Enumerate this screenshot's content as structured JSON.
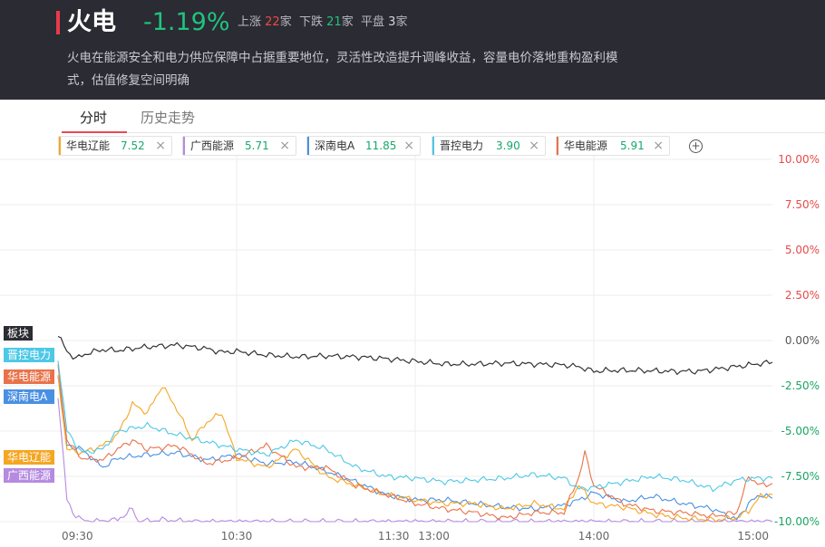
{
  "header": {
    "title": "火电",
    "change": "-1.19%",
    "up_label": "上涨",
    "up_count": "22",
    "up_unit": "家",
    "down_label": "下跌",
    "down_count": "21",
    "down_unit": "家",
    "flat_label": "平盘",
    "flat_count": "3",
    "flat_unit": "家",
    "description": "火电在能源安全和电力供应保障中占据重要地位，灵活性改造提升调峰收益，容量电价落地重构盈利模式，估值修复空间明确",
    "accent_color": "#e83a4a"
  },
  "tabs": [
    {
      "label": "分时",
      "active": true
    },
    {
      "label": "历史走势",
      "active": false
    }
  ],
  "chips": [
    {
      "name": "华电辽能",
      "value": "7.52",
      "color": "#f5a623",
      "close": "×"
    },
    {
      "name": "广西能源",
      "value": "5.71",
      "color": "#b58ae0",
      "close": "×"
    },
    {
      "name": "深南电A",
      "value": "11.85",
      "color": "#4a90e2",
      "close": "×"
    },
    {
      "name": "晋控电力",
      "value": "3.90",
      "color": "#4dc8e6",
      "close": "×"
    },
    {
      "name": "华电能源",
      "value": "5.91",
      "color": "#e8734a",
      "close": "×"
    }
  ],
  "add_icon": "plus-circle-icon",
  "chart_data": {
    "type": "line",
    "x_ticks": [
      "09:30",
      "10:30",
      "11:30",
      "13:00",
      "14:00",
      "15:00"
    ],
    "y_ticks": [
      "10.00%",
      "7.50%",
      "5.00%",
      "2.50%",
      "0.00%",
      "-2.50%",
      "-5.00%",
      "-7.50%",
      "-10.00%"
    ],
    "ylim": [
      -10,
      10
    ],
    "y_unit": "%",
    "n_points": 241,
    "series": [
      {
        "name": "板块",
        "color": "#333333",
        "anchors": [
          [
            0,
            0.3
          ],
          [
            3,
            -0.6
          ],
          [
            6,
            -1.0
          ],
          [
            10,
            -0.7
          ],
          [
            15,
            -0.5
          ],
          [
            20,
            -0.55
          ],
          [
            30,
            -0.35
          ],
          [
            40,
            -0.25
          ],
          [
            50,
            -0.45
          ],
          [
            55,
            -0.65
          ],
          [
            60,
            -0.6
          ],
          [
            70,
            -0.8
          ],
          [
            80,
            -0.9
          ],
          [
            90,
            -0.85
          ],
          [
            100,
            -0.9
          ],
          [
            110,
            -1.0
          ],
          [
            120,
            -1.15
          ],
          [
            130,
            -1.3
          ],
          [
            140,
            -1.3
          ],
          [
            150,
            -1.25
          ],
          [
            160,
            -1.3
          ],
          [
            170,
            -1.35
          ],
          [
            175,
            -1.45
          ],
          [
            180,
            -1.7
          ],
          [
            185,
            -1.65
          ],
          [
            195,
            -1.65
          ],
          [
            205,
            -1.7
          ],
          [
            215,
            -1.7
          ],
          [
            225,
            -1.5
          ],
          [
            232,
            -1.35
          ],
          [
            240,
            -1.2
          ]
        ]
      },
      {
        "name": "晋控电力",
        "color": "#4dc8e6",
        "anchors": [
          [
            0,
            -1.0
          ],
          [
            3,
            -5.0
          ],
          [
            8,
            -6.2
          ],
          [
            15,
            -6.0
          ],
          [
            20,
            -5.0
          ],
          [
            30,
            -4.7
          ],
          [
            40,
            -5.2
          ],
          [
            50,
            -5.6
          ],
          [
            60,
            -6.0
          ],
          [
            70,
            -6.3
          ],
          [
            80,
            -5.5
          ],
          [
            90,
            -6.0
          ],
          [
            100,
            -7.0
          ],
          [
            110,
            -7.5
          ],
          [
            120,
            -7.6
          ],
          [
            130,
            -7.8
          ],
          [
            140,
            -7.7
          ],
          [
            150,
            -7.6
          ],
          [
            160,
            -7.4
          ],
          [
            170,
            -7.6
          ],
          [
            175,
            -8.2
          ],
          [
            180,
            -8.1
          ],
          [
            190,
            -7.8
          ],
          [
            200,
            -7.5
          ],
          [
            210,
            -7.7
          ],
          [
            220,
            -8.2
          ],
          [
            228,
            -7.7
          ],
          [
            235,
            -7.6
          ],
          [
            240,
            -7.6
          ]
        ]
      },
      {
        "name": "华电能源",
        "color": "#e8734a",
        "anchors": [
          [
            0,
            -1.5
          ],
          [
            3,
            -5.5
          ],
          [
            8,
            -6.5
          ],
          [
            15,
            -6.6
          ],
          [
            20,
            -6.0
          ],
          [
            25,
            -5.5
          ],
          [
            30,
            -6.0
          ],
          [
            40,
            -5.8
          ],
          [
            50,
            -6.8
          ],
          [
            60,
            -6.5
          ],
          [
            70,
            -5.8
          ],
          [
            80,
            -7.0
          ],
          [
            90,
            -7.0
          ],
          [
            100,
            -8.0
          ],
          [
            110,
            -8.5
          ],
          [
            120,
            -9.0
          ],
          [
            130,
            -9.3
          ],
          [
            140,
            -9.5
          ],
          [
            150,
            -9.8
          ],
          [
            160,
            -9.5
          ],
          [
            170,
            -9.5
          ],
          [
            175,
            -7.5
          ],
          [
            177,
            -6.2
          ],
          [
            180,
            -8.0
          ],
          [
            185,
            -8.5
          ],
          [
            190,
            -9.0
          ],
          [
            200,
            -9.4
          ],
          [
            210,
            -9.5
          ],
          [
            220,
            -9.7
          ],
          [
            228,
            -9.5
          ],
          [
            232,
            -7.5
          ],
          [
            236,
            -8.0
          ],
          [
            240,
            -7.9
          ]
        ]
      },
      {
        "name": "深南电A",
        "color": "#4a90e2",
        "anchors": [
          [
            0,
            -1.8
          ],
          [
            3,
            -5.8
          ],
          [
            8,
            -6.0
          ],
          [
            15,
            -7.0
          ],
          [
            20,
            -6.5
          ],
          [
            30,
            -6.3
          ],
          [
            40,
            -6.2
          ],
          [
            50,
            -6.6
          ],
          [
            60,
            -6.3
          ],
          [
            70,
            -6.8
          ],
          [
            80,
            -6.7
          ],
          [
            90,
            -7.2
          ],
          [
            100,
            -7.8
          ],
          [
            110,
            -8.5
          ],
          [
            120,
            -8.8
          ],
          [
            130,
            -8.8
          ],
          [
            140,
            -9.0
          ],
          [
            150,
            -9.2
          ],
          [
            160,
            -9.3
          ],
          [
            170,
            -9.1
          ],
          [
            175,
            -8.8
          ],
          [
            180,
            -8.4
          ],
          [
            190,
            -8.9
          ],
          [
            200,
            -8.6
          ],
          [
            210,
            -9.0
          ],
          [
            220,
            -9.3
          ],
          [
            228,
            -9.9
          ],
          [
            232,
            -9.0
          ],
          [
            236,
            -8.5
          ],
          [
            240,
            -8.7
          ]
        ]
      },
      {
        "name": "华电辽能",
        "color": "#f5a623",
        "anchors": [
          [
            0,
            -2.0
          ],
          [
            3,
            -6.0
          ],
          [
            8,
            -6.2
          ],
          [
            15,
            -5.8
          ],
          [
            20,
            -5.2
          ],
          [
            25,
            -3.5
          ],
          [
            30,
            -4.0
          ],
          [
            35,
            -2.5
          ],
          [
            40,
            -3.8
          ],
          [
            45,
            -5.5
          ],
          [
            50,
            -4.5
          ],
          [
            55,
            -4.0
          ],
          [
            60,
            -6.5
          ],
          [
            70,
            -7.0
          ],
          [
            80,
            -6.0
          ],
          [
            90,
            -7.5
          ],
          [
            100,
            -8.0
          ],
          [
            110,
            -8.5
          ],
          [
            120,
            -8.8
          ],
          [
            130,
            -9.0
          ],
          [
            140,
            -9.0
          ],
          [
            150,
            -9.3
          ],
          [
            160,
            -9.0
          ],
          [
            170,
            -9.3
          ],
          [
            175,
            -8.0
          ],
          [
            180,
            -9.0
          ],
          [
            190,
            -9.2
          ],
          [
            200,
            -9.6
          ],
          [
            210,
            -9.8
          ],
          [
            220,
            -9.9
          ],
          [
            228,
            -9.8
          ],
          [
            232,
            -9.4
          ],
          [
            236,
            -8.6
          ],
          [
            240,
            -8.5
          ]
        ]
      },
      {
        "name": "广西能源",
        "color": "#b58ae0",
        "anchors": [
          [
            0,
            -3.0
          ],
          [
            3,
            -8.8
          ],
          [
            5,
            -9.5
          ],
          [
            8,
            -9.9
          ],
          [
            10,
            -10.0
          ],
          [
            20,
            -9.9
          ],
          [
            25,
            -9.3
          ],
          [
            27,
            -10.0
          ],
          [
            35,
            -9.9
          ],
          [
            45,
            -10.0
          ],
          [
            60,
            -10.0
          ],
          [
            90,
            -10.0
          ],
          [
            120,
            -10.0
          ],
          [
            150,
            -10.0
          ],
          [
            180,
            -10.0
          ],
          [
            210,
            -10.0
          ],
          [
            240,
            -10.0
          ]
        ]
      }
    ],
    "left_labels": [
      {
        "name": "板块",
        "color": "#2b2b33"
      },
      {
        "name": "晋控电力",
        "color": "#4dc8e6"
      },
      {
        "name": "华电能源",
        "color": "#e8734a"
      },
      {
        "name": "深南电A",
        "color": "#4a90e2"
      },
      {
        "name": "华电辽能",
        "color": "#f5a623"
      },
      {
        "name": "广西能源",
        "color": "#b58ae0"
      }
    ],
    "grid": true
  }
}
